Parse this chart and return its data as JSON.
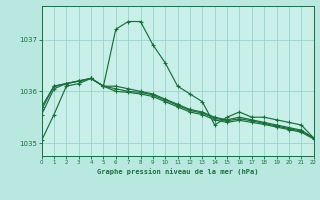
{
  "background_color": "#b8e8e0",
  "plot_bg_color": "#c8f0e8",
  "grid_color": "#90ccc8",
  "line_color": "#1a6e3c",
  "title": "Graphe pression niveau de la mer (hPa)",
  "xlim": [
    0,
    22
  ],
  "ylim": [
    1034.75,
    1037.65
  ],
  "yticks": [
    1035,
    1036,
    1037
  ],
  "xticks": [
    0,
    1,
    2,
    3,
    4,
    5,
    6,
    7,
    8,
    9,
    10,
    11,
    12,
    13,
    14,
    15,
    16,
    17,
    18,
    19,
    20,
    21,
    22
  ],
  "series": [
    [
      1035.05,
      1035.55,
      1036.1,
      1036.15,
      1036.25,
      1036.1,
      1037.2,
      1037.35,
      1037.35,
      1036.9,
      1036.55,
      1036.1,
      1035.95,
      1035.8,
      1035.35,
      1035.5,
      1035.6,
      1035.5,
      1035.5,
      1035.45,
      1035.4,
      1035.35,
      1035.1
    ],
    [
      1035.55,
      1036.05,
      1036.15,
      1036.2,
      1036.25,
      1036.1,
      1036.1,
      1036.05,
      1036.0,
      1035.95,
      1035.85,
      1035.75,
      1035.65,
      1035.6,
      1035.5,
      1035.45,
      1035.5,
      1035.45,
      1035.4,
      1035.35,
      1035.3,
      1035.25,
      1035.1
    ],
    [
      1035.65,
      1036.1,
      1036.15,
      1036.2,
      1036.25,
      1036.1,
      1036.05,
      1036.0,
      1035.98,
      1035.93,
      1035.83,
      1035.73,
      1035.63,
      1035.58,
      1035.48,
      1035.43,
      1035.47,
      1035.43,
      1035.38,
      1035.33,
      1035.28,
      1035.23,
      1035.1
    ],
    [
      1035.7,
      1036.1,
      1036.15,
      1036.2,
      1036.25,
      1036.1,
      1036.0,
      1035.98,
      1035.95,
      1035.9,
      1035.8,
      1035.7,
      1035.6,
      1035.55,
      1035.45,
      1035.4,
      1035.44,
      1035.4,
      1035.36,
      1035.31,
      1035.26,
      1035.21,
      1035.08
    ]
  ],
  "marker": "+",
  "markersize": 3.5,
  "linewidth": 0.85
}
